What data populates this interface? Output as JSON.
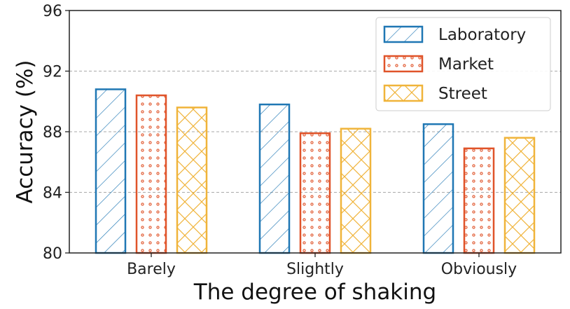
{
  "chart_data": {
    "type": "bar",
    "xlabel": "The degree of shaking",
    "ylabel": "Accuracy (%)",
    "ylim": [
      80,
      96
    ],
    "yticks": [
      80,
      84,
      88,
      92,
      96
    ],
    "categories": [
      "Barely",
      "Slightly",
      "Obviously"
    ],
    "series": [
      {
        "name": "Laboratory",
        "values": [
          90.8,
          89.8,
          88.5
        ],
        "color": "#1f77b4",
        "pattern": "diagonal-hatch"
      },
      {
        "name": "Market",
        "values": [
          90.4,
          87.9,
          86.9
        ],
        "color": "#e0542a",
        "pattern": "dots"
      },
      {
        "name": "Street",
        "values": [
          89.6,
          88.2,
          87.6
        ],
        "color": "#f0b43a",
        "pattern": "cross-hatch"
      }
    ],
    "grid": "horizontal-dashed",
    "legend_position": "top-right"
  }
}
